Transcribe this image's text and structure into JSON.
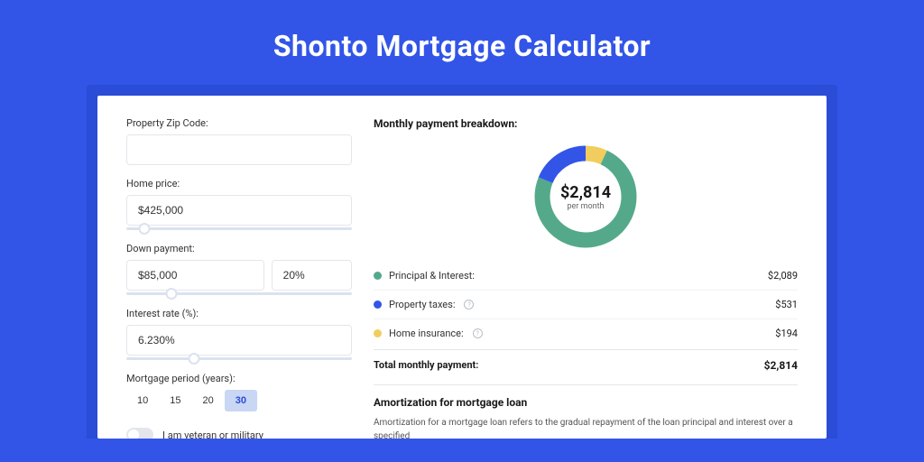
{
  "page": {
    "title": "Shonto Mortgage Calculator",
    "background_color": "#3255e8",
    "outer_wrap_color": "#2a4cd6",
    "card_background": "#ffffff"
  },
  "form": {
    "zip": {
      "label": "Property Zip Code:",
      "value": ""
    },
    "home_price": {
      "label": "Home price:",
      "value": "$425,000",
      "slider_pos_pct": 8
    },
    "down_payment": {
      "label": "Down payment:",
      "amount": "$85,000",
      "percent": "20%",
      "slider_pos_pct": 20
    },
    "interest_rate": {
      "label": "Interest rate (%):",
      "value": "6.230%",
      "slider_pos_pct": 30
    },
    "mortgage_period": {
      "label": "Mortgage period (years):",
      "options": [
        "10",
        "15",
        "20",
        "30"
      ],
      "active_index": 3
    },
    "veteran_toggle": {
      "label": "I am veteran or military",
      "checked": false
    }
  },
  "breakdown": {
    "title": "Monthly payment breakdown:",
    "donut": {
      "center_amount": "$2,814",
      "center_sub": "per month",
      "segments": [
        {
          "label": "Principal & Interest:",
          "value": "$2,089",
          "color": "#54a98a",
          "fraction": 0.742
        },
        {
          "label": "Property taxes:",
          "value": "$531",
          "color": "#3255e8",
          "fraction": 0.189,
          "has_info": true
        },
        {
          "label": "Home insurance:",
          "value": "$194",
          "color": "#f0cd5d",
          "fraction": 0.069,
          "has_info": true
        }
      ],
      "thickness": 17,
      "radius": 48
    },
    "total": {
      "label": "Total monthly payment:",
      "value": "$2,814"
    }
  },
  "amortization": {
    "title": "Amortization for mortgage loan",
    "text": "Amortization for a mortgage loan refers to the gradual repayment of the loan principal and interest over a specified"
  }
}
